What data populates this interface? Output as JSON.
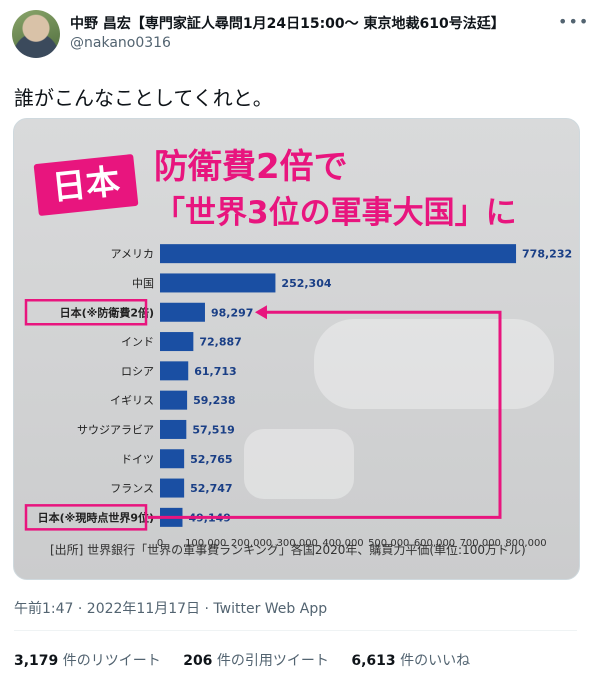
{
  "tweet": {
    "author_name": "中野 昌宏【専門家証人尋問1月24日15:00〜 東京地裁610号法廷】",
    "handle": "@nakano0316",
    "more_icon": "more-icon",
    "text": "誰がこんなことしてくれと。",
    "meta": "午前1:47 · 2022年11月17日 · Twitter Web App",
    "stats": {
      "retweets_count": "3,179",
      "retweets_label": "件のリツイート",
      "quotes_count": "206",
      "quotes_label": "件の引用ツイート",
      "likes_count": "6,613",
      "likes_label": "件のいいね"
    }
  },
  "image": {
    "badge": "日本",
    "headline_1": "防衛費2倍で",
    "headline_2": "「世界3位の軍事大国」に",
    "source": "[出所] 世界銀行「世界の軍事費ランキング」各国2020年、購買力平価(単位:100万ドル)"
  },
  "chart_data": {
    "type": "bar",
    "orientation": "horizontal",
    "categories": [
      "アメリカ",
      "中国",
      "日本(※防衛費2倍)",
      "インド",
      "ロシア",
      "イギリス",
      "サウジアラビア",
      "ドイツ",
      "フランス",
      "日本(※現時点世界9位)"
    ],
    "values": [
      778232,
      252304,
      98297,
      72887,
      61713,
      59238,
      57519,
      52765,
      52747,
      49149
    ],
    "value_labels": [
      "778,232",
      "252,304",
      "98,297",
      "72,887",
      "61,713",
      "59,238",
      "57,519",
      "52,765",
      "52,747",
      "49,149"
    ],
    "highlighted": [
      "日本(※防衛費2倍)",
      "日本(※現時点世界9位)"
    ],
    "x_ticks": [
      "0",
      "100,000",
      "200,000",
      "300,000",
      "400,000",
      "500,000",
      "600,000",
      "700,000",
      "800,000"
    ],
    "xlim": [
      0,
      800000
    ],
    "bar_color": "#1a4fa3",
    "highlight_color": "#e8157e",
    "title": "防衛費2倍で「世界3位の軍事大国」に",
    "xlabel": "",
    "ylabel": ""
  }
}
